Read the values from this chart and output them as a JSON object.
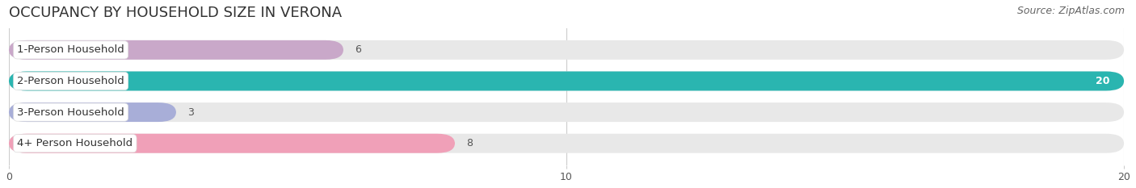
{
  "title": "OCCUPANCY BY HOUSEHOLD SIZE IN VERONA",
  "source": "Source: ZipAtlas.com",
  "categories": [
    "1-Person Household",
    "2-Person Household",
    "3-Person Household",
    "4+ Person Household"
  ],
  "values": [
    6,
    20,
    3,
    8
  ],
  "bar_colors": [
    "#c9a8c9",
    "#2ab5b0",
    "#a8aed8",
    "#f0a0b8"
  ],
  "bg_bar_color": "#e8e8e8",
  "background_color": "#ffffff",
  "plot_bg_color": "#ffffff",
  "xlim": [
    0,
    20
  ],
  "xticks": [
    0,
    10,
    20
  ],
  "title_fontsize": 13,
  "source_fontsize": 9,
  "bar_label_fontsize": 9,
  "category_fontsize": 9.5
}
